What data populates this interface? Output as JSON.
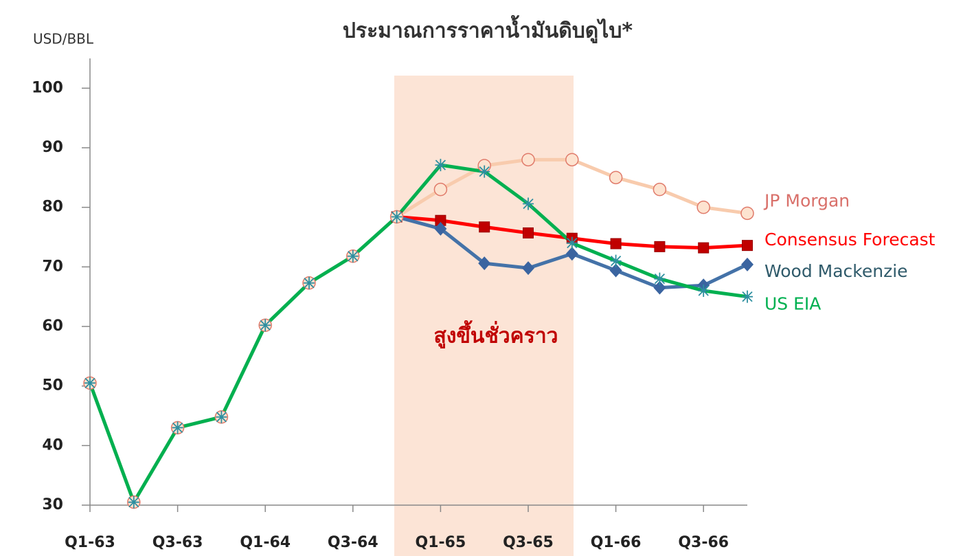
{
  "chart_data": {
    "type": "line",
    "title": "ประมาณการราคาน้ำมันดิบดูไบ*",
    "y_axis_label": "USD/BBL",
    "annotation": "สูงขึ้นชั่วคราว",
    "categories": [
      "Q1-63",
      null,
      "Q3-63",
      null,
      "Q1-64",
      null,
      "Q3-64",
      null,
      "Q1-65",
      null,
      "Q3-65",
      null,
      "Q1-66",
      null,
      "Q3-66",
      null
    ],
    "ylim": [
      30,
      105
    ],
    "yticks": [
      30,
      40,
      50,
      60,
      70,
      80,
      90,
      100
    ],
    "series": [
      {
        "name": "JP Morgan",
        "color": "#f8cbad",
        "marker_color": "#e07a6a",
        "label_color": "#d9706a",
        "marker": "circle",
        "values": [
          50.5,
          30.5,
          43,
          44.8,
          60.2,
          67.3,
          71.8,
          78.4,
          83,
          87,
          88,
          88,
          85,
          83,
          80,
          79
        ]
      },
      {
        "name": "Consensus Forecast",
        "color": "#ff0000",
        "marker_color": "#c00000",
        "label_color": "#ff0000",
        "marker": "square",
        "values": [
          null,
          null,
          null,
          null,
          null,
          null,
          null,
          78.4,
          77.8,
          76.7,
          75.7,
          74.8,
          73.9,
          73.4,
          73.2,
          73.6
        ]
      },
      {
        "name": "Wood Mackenzie",
        "color": "#4472a8",
        "marker_color": "#3a64a0",
        "label_color": "#2f5a6a",
        "marker": "diamond",
        "values": [
          null,
          null,
          null,
          null,
          null,
          null,
          null,
          78.4,
          76.4,
          70.6,
          69.8,
          72.2,
          69.4,
          66.5,
          66.9,
          70.4
        ]
      },
      {
        "name": "US EIA",
        "color": "#00b050",
        "marker_color": "#2e8fa0",
        "label_color": "#00b050",
        "marker": "asterisk",
        "values": [
          50.5,
          30.5,
          43,
          44.8,
          60.2,
          67.3,
          71.8,
          78.4,
          87.1,
          86,
          80.6,
          74,
          71,
          68,
          66,
          65
        ]
      }
    ]
  }
}
